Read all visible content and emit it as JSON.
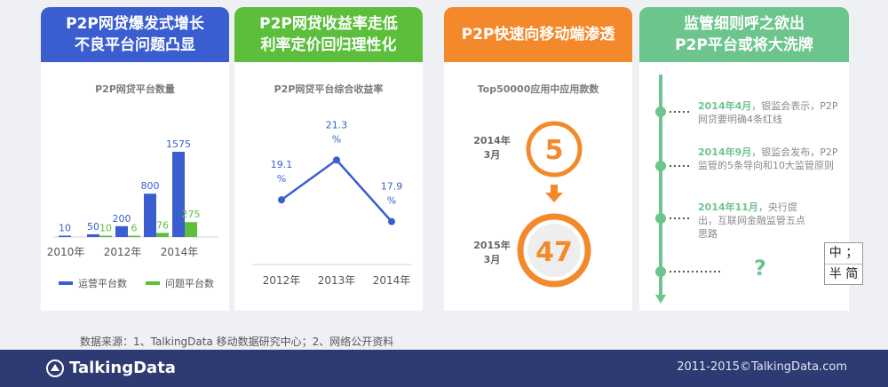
{
  "colors": {
    "blue": "#3a5ecf",
    "green": "#5bbf3c",
    "orange": "#f4892b",
    "teal": "#6cc58d",
    "footer": "#2e3a72"
  },
  "panels": {
    "p1": {
      "title1": "P2P网贷爆发式增长",
      "title2": "不良平台问题凸显"
    },
    "p2": {
      "title1": "P2P网贷收益率走低",
      "title2": "利率定价回归理性化"
    },
    "p3": {
      "title1": "P2P快速向移动端渗透"
    },
    "p4": {
      "title1": "监管细则呼之欲出",
      "title2": "P2P平台或将大洗牌"
    }
  },
  "chart_data": [
    {
      "type": "bar",
      "title": "P2P网贷平台数量",
      "categories": [
        "2010",
        "2011",
        "2012",
        "2013",
        "2014"
      ],
      "x_tick_labels": [
        "2010年",
        "2012年",
        "2014年"
      ],
      "series": [
        {
          "name": "运营平台数",
          "values": [
            10,
            50,
            200,
            800,
            1575
          ],
          "color": "#3a5ecf"
        },
        {
          "name": "问题平台数",
          "values": [
            0,
            10,
            6,
            76,
            275
          ],
          "color": "#5bbf3c"
        }
      ],
      "value_labels": {
        "operating": [
          "10",
          "50",
          "200",
          "800",
          "1575"
        ],
        "problem": [
          "10",
          "6",
          "76",
          "275"
        ]
      },
      "legend": "bottom"
    },
    {
      "type": "line",
      "title": "P2P网贷平台综合收益率",
      "x": [
        "2012年",
        "2013年",
        "2014年"
      ],
      "values": [
        19.1,
        21.3,
        17.9
      ],
      "value_labels": [
        [
          "19.1",
          "%"
        ],
        [
          "21.3",
          "%"
        ],
        [
          "17.9",
          "%"
        ]
      ],
      "color": "#3a5ecf"
    },
    {
      "type": "table",
      "title": "Top50000应用中应用款数",
      "rows": [
        {
          "period": [
            "2014年",
            "3月"
          ],
          "value": 5
        },
        {
          "period": [
            "2015年",
            "3月"
          ],
          "value": 47
        }
      ]
    }
  ],
  "timeline": [
    {
      "date": "2014年4月",
      "text": "，银监会表示，P2P网贷要明确4条红线"
    },
    {
      "date": "2014年9月",
      "text": "，银监会发布，P2P监管的5条导向和10大监管原则"
    },
    {
      "date": "2014年11月",
      "text": "，央行提出，互联网金融监管五点思路"
    }
  ],
  "timeline_unknown": "?",
  "ime": {
    "row1": "中 ；",
    "row2": "半 简"
  },
  "source_note": "数据来源：1、TalkingData 移动数据研究中心；2、网络公开资料",
  "footer": {
    "brand": "TalkingData",
    "copyright": "2011-2015©TalkingData.com"
  }
}
